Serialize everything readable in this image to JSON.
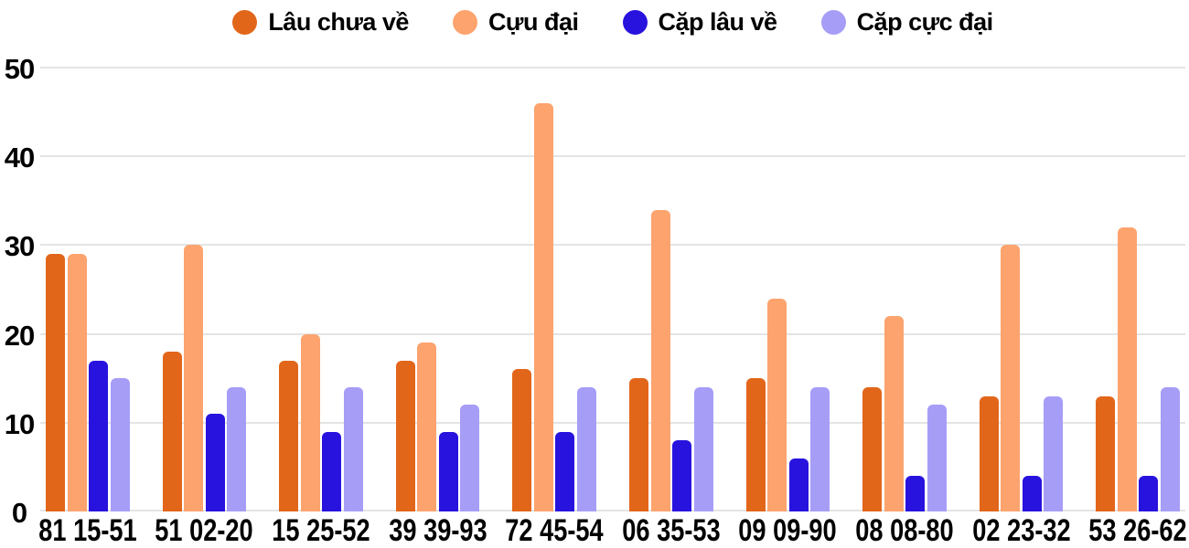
{
  "chart_data": {
    "type": "bar",
    "title": "",
    "xlabel": "",
    "ylabel": "",
    "categories": [
      "81 15-51",
      "51 02-20",
      "15 25-52",
      "39 39-93",
      "72 45-54",
      "06 35-53",
      "09 09-90",
      "08 08-80",
      "02 23-32",
      "53 26-62"
    ],
    "series": [
      {
        "name": "Lâu chưa về",
        "color": "#E2661A",
        "values": [
          29,
          18,
          17,
          17,
          16,
          15,
          15,
          14,
          13,
          13
        ]
      },
      {
        "name": "Cựu đại",
        "color": "#FCA36E",
        "values": [
          29,
          30,
          20,
          19,
          46,
          34,
          24,
          22,
          30,
          32
        ]
      },
      {
        "name": "Cặp lâu về",
        "color": "#2812DE",
        "values": [
          17,
          11,
          9,
          9,
          9,
          8,
          6,
          4,
          4,
          4
        ]
      },
      {
        "name": "Cặp cực đại",
        "color": "#A69DF7",
        "values": [
          15,
          14,
          14,
          12,
          14,
          14,
          14,
          12,
          13,
          14
        ]
      }
    ],
    "y_ticks": [
      0,
      10,
      20,
      30,
      40,
      50
    ],
    "ylim": [
      0,
      50
    ],
    "grid": true,
    "legend_position": "top"
  },
  "styles": {
    "background": "#FFFFFF",
    "grid_color": "#E4E4E4",
    "text_color": "#000000"
  }
}
